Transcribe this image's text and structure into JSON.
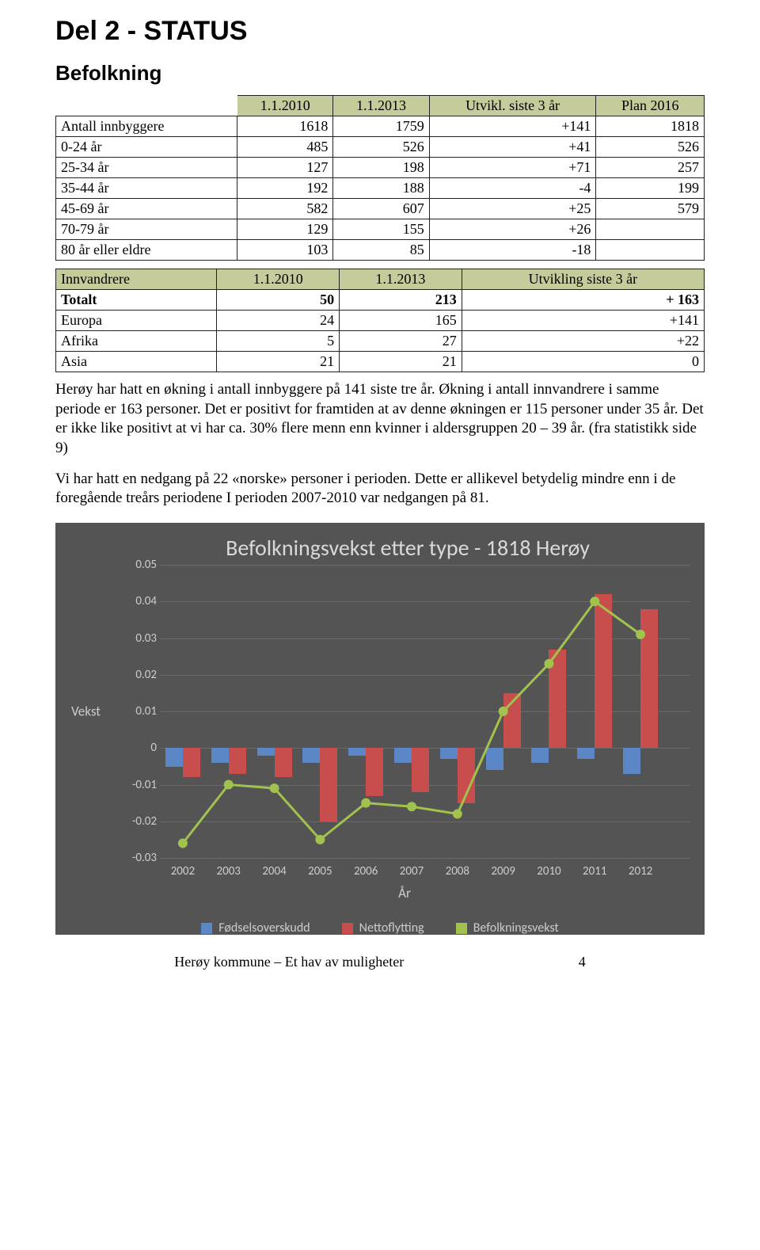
{
  "page_title": "Del 2 - STATUS",
  "section_title": "Befolkning",
  "table1": {
    "headers": [
      "",
      "1.1.2010",
      "1.1.2013",
      "Utvikl. siste 3 år",
      "Plan 2016"
    ],
    "rows": [
      [
        "Antall innbyggere",
        "1618",
        "1759",
        "+141",
        "1818"
      ],
      [
        "0-24 år",
        "485",
        "526",
        "+41",
        "526"
      ],
      [
        "25-34 år",
        "127",
        "198",
        "+71",
        "257"
      ],
      [
        "35-44 år",
        "192",
        "188",
        "-4",
        "199"
      ],
      [
        "45-69 år",
        "582",
        "607",
        "+25",
        "579"
      ],
      [
        "70-79 år",
        "129",
        "155",
        "+26",
        ""
      ],
      [
        "80 år eller eldre",
        "103",
        "85",
        "-18",
        ""
      ]
    ]
  },
  "table2": {
    "headers": [
      "Innvandrere",
      "1.1.2010",
      "1.1.2013",
      "Utvikling siste 3 år"
    ],
    "rows": [
      [
        "Totalt",
        "50",
        "213",
        "+ 163"
      ],
      [
        "Europa",
        "24",
        "165",
        "+141"
      ],
      [
        "Afrika",
        "5",
        "27",
        "+22"
      ],
      [
        "Asia",
        "21",
        "21",
        "0"
      ]
    ]
  },
  "para1": "Herøy har hatt en økning i antall innbyggere på 141 siste tre år. Økning i antall innvandrere i samme periode er 163 personer. Det er positivt for framtiden at av denne økningen er 115 personer under 35 år. Det er ikke like positivt at vi har ca. 30% flere menn enn kvinner i aldersgruppen 20 – 39 år. (fra statistikk side 9)",
  "para2": "Vi har hatt en nedgang på 22 «norske» personer i perioden. Dette er allikevel betydelig mindre enn i de foregående treårs periodene I perioden 2007-2010 var nedgangen på 81.",
  "chart": {
    "title": "Befolkningsvekst etter type - 1818 Herøy",
    "y_label": "Vekst",
    "x_label": "År",
    "ylim": [
      -0.03,
      0.05
    ],
    "yticks": [
      -0.03,
      -0.02,
      -0.01,
      0,
      0.01,
      0.02,
      0.03,
      0.04,
      0.05
    ],
    "years": [
      "2002",
      "2003",
      "2004",
      "2005",
      "2006",
      "2007",
      "2008",
      "2009",
      "2010",
      "2011",
      "2012"
    ],
    "series": {
      "blue": {
        "label": "Fødselsoverskudd",
        "color": "#5b87c7",
        "values": [
          -0.005,
          -0.004,
          -0.002,
          -0.004,
          -0.002,
          -0.004,
          -0.003,
          -0.006,
          -0.004,
          -0.003,
          -0.007
        ]
      },
      "red": {
        "label": "Nettoflytting",
        "color": "#c84d4d",
        "values": [
          -0.008,
          -0.007,
          -0.008,
          -0.02,
          -0.013,
          -0.012,
          -0.015,
          0.015,
          0.027,
          0.042,
          0.038
        ]
      },
      "green": {
        "label": "Befolkningsvekst",
        "color": "#a1c24d",
        "values": [
          -0.026,
          -0.01,
          -0.011,
          -0.025,
          -0.015,
          -0.016,
          -0.018,
          0.01,
          0.023,
          0.04,
          0.031
        ]
      }
    },
    "bg": "#545454",
    "grid": "#6a6a6a",
    "text": "#cccccc",
    "marker_size": 6
  },
  "footer": {
    "left": "Herøy kommune – Et hav av muligheter",
    "page": "4"
  }
}
